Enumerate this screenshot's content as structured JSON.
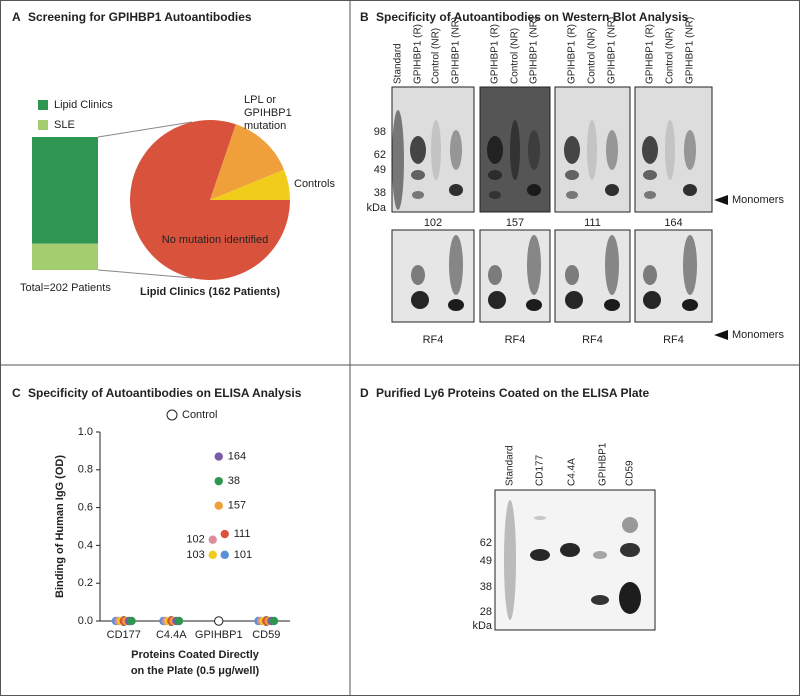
{
  "panels": [
    {
      "letter": "A",
      "title": "Screening for GPIHBP1 Autoantibodies"
    },
    {
      "letter": "B",
      "title": "Specificity of Autoantibodies on Western Blot Analysis"
    },
    {
      "letter": "C",
      "title": "Specificity of Autoantibodies on ELISA Analysis"
    },
    {
      "letter": "D",
      "title": "Purified Ly6 Proteins Coated on the ELISA Plate"
    }
  ],
  "chart_data": [
    {
      "type": "stacked_bar",
      "caption": "Total=202 Patients",
      "series": [
        {
          "name": "Lipid Clinics",
          "color": "#2e9650",
          "values": [
            162
          ]
        },
        {
          "name": "SLE",
          "color": "#a3cd6e",
          "values": [
            40
          ]
        }
      ]
    },
    {
      "type": "pie",
      "title": "Lipid Clinics (162 Patients)",
      "categories": [
        "No mutation identified",
        "LPL or GPIHBP1 mutation",
        "Controls"
      ],
      "values": [
        130,
        22,
        10
      ],
      "colors": [
        "#d9533c",
        "#f0a03a",
        "#f2cc1b"
      ]
    },
    {
      "type": "dot",
      "ylabel": "Binding of Human IgG (OD)",
      "xlabel": [
        "Proteins Coated Directly",
        "on the Plate (0.5 μg/well)"
      ],
      "categories": [
        "CD177",
        "C4.4A",
        "GPIHBP1",
        "CD59"
      ],
      "ylim": [
        0,
        1.0
      ],
      "yticks": [
        {
          "value": 0,
          "label": "0.0"
        },
        0.2,
        0.4,
        0.6,
        0.8,
        {
          "value": 1.0,
          "label": "1.0"
        }
      ],
      "series": [
        {
          "name": "Control",
          "color": "#ffffff",
          "values": [
            0,
            0,
            0,
            0
          ]
        },
        {
          "name": "101",
          "color": "#5b8fd6",
          "values": [
            0,
            0,
            0.35,
            0
          ]
        },
        {
          "name": "102",
          "color": "#d88f9c",
          "values": [
            0,
            0,
            0.43,
            0
          ]
        },
        {
          "name": "103",
          "color": "#f2cc1b",
          "values": [
            0,
            0,
            0.35,
            0
          ]
        },
        {
          "name": "111",
          "color": "#d9533c",
          "values": [
            0,
            0,
            0.46,
            0
          ]
        },
        {
          "name": "157",
          "color": "#f0a03a",
          "values": [
            0,
            0,
            0.61,
            0
          ]
        },
        {
          "name": "164",
          "color": "#7b5aa6",
          "values": [
            0,
            0,
            0.87,
            0
          ]
        },
        {
          "name": "38",
          "color": "#2e9650",
          "values": [
            0,
            0,
            0.74,
            0
          ]
        }
      ]
    }
  ],
  "western_blot": {
    "lanes": [
      "Standard",
      "GPIHBP1 (R)",
      "Control (NR)",
      "GPIHBP1 (NR)"
    ],
    "markers": [
      98,
      62,
      49,
      38
    ],
    "unit": "kDa",
    "samples": [
      102,
      157,
      111,
      164
    ],
    "control_label": "RF4",
    "band_label": "Monomers"
  },
  "gel": {
    "lanes": [
      "Standard",
      "CD177",
      "C4.4A",
      "GPIHBP1",
      "CD59"
    ],
    "markers": [
      62,
      49,
      38,
      28
    ],
    "unit": "kDa"
  }
}
